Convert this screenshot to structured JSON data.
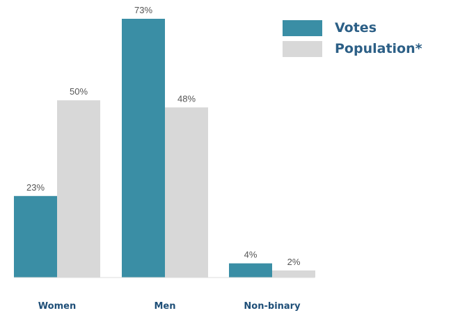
{
  "chart_data": {
    "type": "bar",
    "categories": [
      "Women",
      "Men",
      "Non-binary"
    ],
    "series": [
      {
        "name": "Votes",
        "color": "#3a8ea5",
        "values": [
          23,
          73,
          4
        ],
        "labels": [
          "23%",
          "73%",
          "4%"
        ]
      },
      {
        "name": "Population*",
        "color": "#d8d8d8",
        "values": [
          50,
          48,
          2
        ],
        "labels": [
          "50%",
          "48%",
          "2%"
        ]
      }
    ],
    "ylim": [
      0,
      73
    ],
    "grid": false,
    "legend_position": "top-right"
  }
}
